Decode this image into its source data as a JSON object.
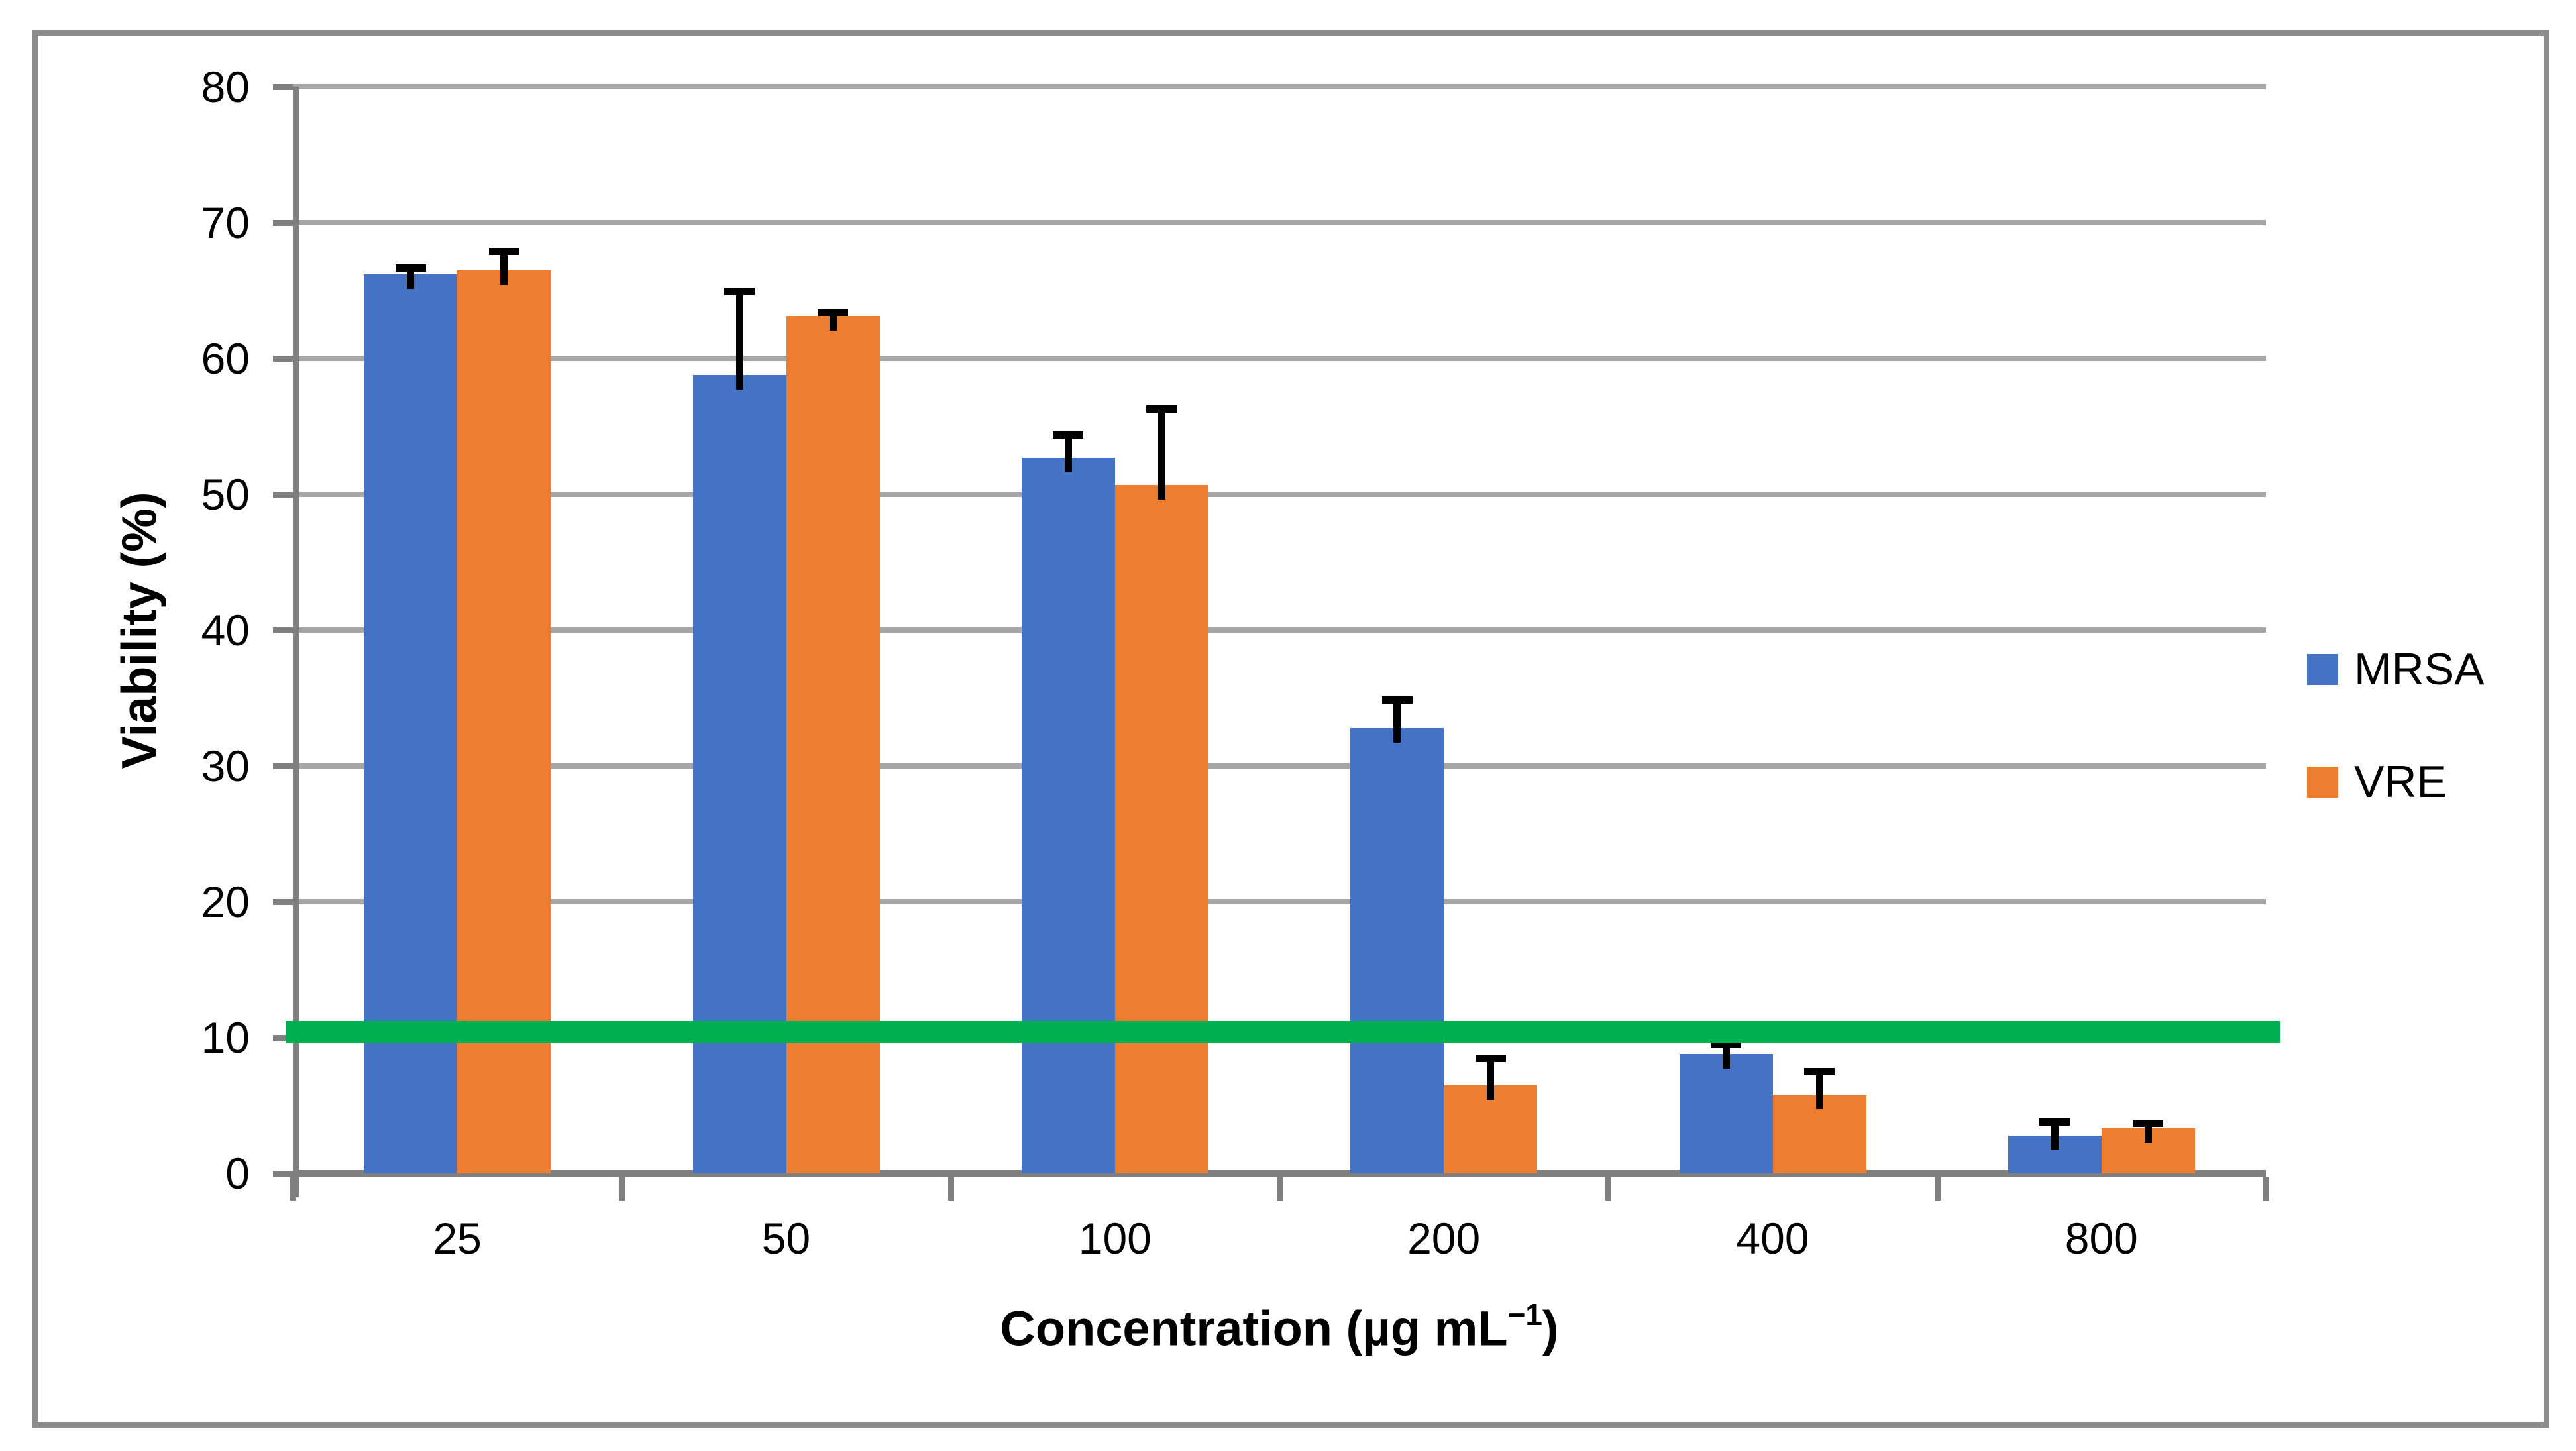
{
  "figure": {
    "background": "#FFFFFF",
    "border_color": "#8C8C8C"
  },
  "chart_data": {
    "type": "bar",
    "title": "",
    "xlabel": "Concentration (µg mL−1)",
    "xlabel_parts": {
      "base": "Concentration (µg mL",
      "sup": "−1",
      "suffix": ")"
    },
    "ylabel": "Viability (%)",
    "categories": [
      "25",
      "50",
      "100",
      "200",
      "400",
      "800"
    ],
    "series": [
      {
        "name": "MRSA",
        "color": "#4472C4",
        "values": [
          66.2,
          58.8,
          52.7,
          32.8,
          8.8,
          2.8
        ],
        "errors_plus": [
          0.5,
          6.2,
          1.7,
          2.1,
          0.7,
          1.0
        ]
      },
      {
        "name": "VRE",
        "color": "#ED7D31",
        "values": [
          66.5,
          63.1,
          50.7,
          6.5,
          5.8,
          3.3
        ],
        "errors_plus": [
          1.4,
          0.3,
          5.6,
          2.0,
          1.7,
          0.4
        ]
      }
    ],
    "ylim": [
      0,
      80
    ],
    "ytick_step": 10,
    "yticks": [
      "0",
      "10",
      "20",
      "30",
      "40",
      "50",
      "60",
      "70",
      "80"
    ],
    "grid": true,
    "gridline_color": "#A6A6A6",
    "axis_color": "#7F7F7F",
    "error_bar_color": "#000000",
    "legend_position": "right",
    "threshold_line": {
      "value": 10.4,
      "color": "#00B050",
      "thickness_units": 1.6
    }
  },
  "legend": {
    "items": [
      {
        "label": "MRSA",
        "color": "#4472C4"
      },
      {
        "label": "VRE",
        "color": "#ED7D31"
      }
    ]
  }
}
